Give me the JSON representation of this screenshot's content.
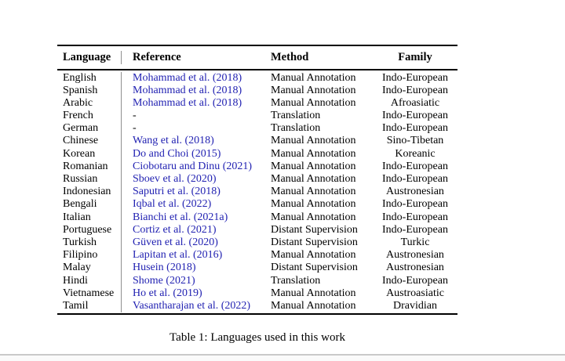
{
  "page": {
    "caption": "Table 1: Languages used in this work"
  },
  "colors": {
    "citation_link": "#2222b2",
    "table_rule": "#000000",
    "column_divider": "#8f8f8f",
    "page_edge_line": "#c9c9c9"
  },
  "table": {
    "headers": [
      "Language",
      "Reference",
      "Method",
      "Family"
    ],
    "rows": [
      {
        "language": "English",
        "reference": "Mohammad et al. (2018)",
        "ref_is_link": true,
        "method": "Manual Annotation",
        "family": "Indo-European"
      },
      {
        "language": "Spanish",
        "reference": "Mohammad et al. (2018)",
        "ref_is_link": true,
        "method": "Manual Annotation",
        "family": "Indo-European"
      },
      {
        "language": "Arabic",
        "reference": "Mohammad et al. (2018)",
        "ref_is_link": true,
        "method": "Manual Annotation",
        "family": "Afroasiatic"
      },
      {
        "language": "French",
        "reference": "-",
        "ref_is_link": false,
        "method": "Translation",
        "family": "Indo-European"
      },
      {
        "language": "German",
        "reference": "-",
        "ref_is_link": false,
        "method": "Translation",
        "family": "Indo-European"
      },
      {
        "language": "Chinese",
        "reference": "Wang et al. (2018)",
        "ref_is_link": true,
        "method": "Manual Annotation",
        "family": "Sino-Tibetan"
      },
      {
        "language": "Korean",
        "reference": "Do and Choi (2015)",
        "ref_is_link": true,
        "method": "Manual Annotation",
        "family": "Koreanic"
      },
      {
        "language": "Romanian",
        "reference": "Ciobotaru and Dinu (2021)",
        "ref_is_link": true,
        "method": "Manual Annotation",
        "family": "Indo-European"
      },
      {
        "language": "Russian",
        "reference": "Sboev et al. (2020)",
        "ref_is_link": true,
        "method": "Manual Annotation",
        "family": "Indo-European"
      },
      {
        "language": "Indonesian",
        "reference": "Saputri et al. (2018)",
        "ref_is_link": true,
        "method": "Manual Annotation",
        "family": "Austronesian"
      },
      {
        "language": "Bengali",
        "reference": "Iqbal et al. (2022)",
        "ref_is_link": true,
        "method": "Manual Annotation",
        "family": "Indo-European"
      },
      {
        "language": "Italian",
        "reference": "Bianchi et al. (2021a)",
        "ref_is_link": true,
        "method": "Manual Annotation",
        "family": "Indo-European"
      },
      {
        "language": "Portuguese",
        "reference": "Cortiz et al. (2021)",
        "ref_is_link": true,
        "method": "Distant Supervision",
        "family": "Indo-European"
      },
      {
        "language": "Turkish",
        "reference": "Güven et al. (2020)",
        "ref_is_link": true,
        "method": "Distant Supervision",
        "family": "Turkic"
      },
      {
        "language": "Filipino",
        "reference": "Lapitan et al. (2016)",
        "ref_is_link": true,
        "method": "Manual Annotation",
        "family": "Austronesian"
      },
      {
        "language": "Malay",
        "reference": "Husein (2018)",
        "ref_is_link": true,
        "method": "Distant Supervision",
        "family": "Austronesian"
      },
      {
        "language": "Hindi",
        "reference": "Shome (2021)",
        "ref_is_link": true,
        "method": "Translation",
        "family": "Indo-European"
      },
      {
        "language": "Vietnamese",
        "reference": "Ho et al. (2019)",
        "ref_is_link": true,
        "method": "Manual Annotation",
        "family": "Austroasiatic"
      },
      {
        "language": "Tamil",
        "reference": "Vasantharajan et al. (2022)",
        "ref_is_link": true,
        "method": "Manual Annotation",
        "family": "Dravidian"
      }
    ]
  }
}
